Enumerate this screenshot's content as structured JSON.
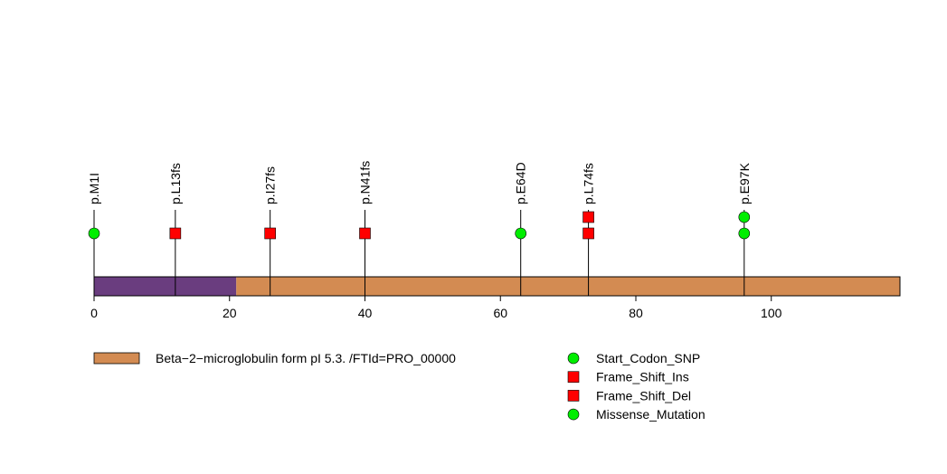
{
  "chart_data": {
    "type": "lollipop",
    "x_range": [
      0,
      119
    ],
    "x_ticks": [
      0,
      20,
      40,
      60,
      80,
      100
    ],
    "x_tick_labels": [
      "0",
      "20",
      "40",
      "60",
      "80",
      "100"
    ],
    "protein_length": 119,
    "domains": [
      {
        "start": 0,
        "end": 21,
        "color": "#6a3d7f",
        "in_legend": false
      },
      {
        "start": 21,
        "end": 119,
        "color": "#d38b52",
        "in_legend": true,
        "label": "Beta−2−microglobulin form pI 5.3. /FTId=PRO_00000"
      }
    ],
    "mutations": [
      {
        "label": "p.M1I",
        "position": 0,
        "markers": [
          {
            "type": "Start_Codon_SNP"
          }
        ]
      },
      {
        "label": "p.L13fs",
        "position": 12,
        "markers": [
          {
            "type": "Frame_Shift_Ins"
          }
        ]
      },
      {
        "label": "p.I27fs",
        "position": 26,
        "markers": [
          {
            "type": "Frame_Shift_Ins"
          }
        ]
      },
      {
        "label": "p.N41fs",
        "position": 40,
        "markers": [
          {
            "type": "Frame_Shift_Del"
          }
        ]
      },
      {
        "label": "p.E64D",
        "position": 63,
        "markers": [
          {
            "type": "Missense_Mutation"
          }
        ]
      },
      {
        "label": "p.L74fs",
        "position": 73,
        "markers": [
          {
            "type": "Frame_Shift_Ins"
          },
          {
            "type": "Frame_Shift_Del"
          }
        ]
      },
      {
        "label": "p.E97K",
        "position": 96,
        "markers": [
          {
            "type": "Missense_Mutation"
          },
          {
            "type": "Missense_Mutation"
          }
        ]
      }
    ],
    "mutation_types": [
      {
        "name": "Start_Codon_SNP",
        "shape": "circle",
        "color": "#00ee00"
      },
      {
        "name": "Frame_Shift_Ins",
        "shape": "square",
        "color": "#ff0000"
      },
      {
        "name": "Frame_Shift_Del",
        "shape": "square",
        "color": "#ff0000"
      },
      {
        "name": "Missense_Mutation",
        "shape": "circle",
        "color": "#00ee00"
      }
    ]
  }
}
